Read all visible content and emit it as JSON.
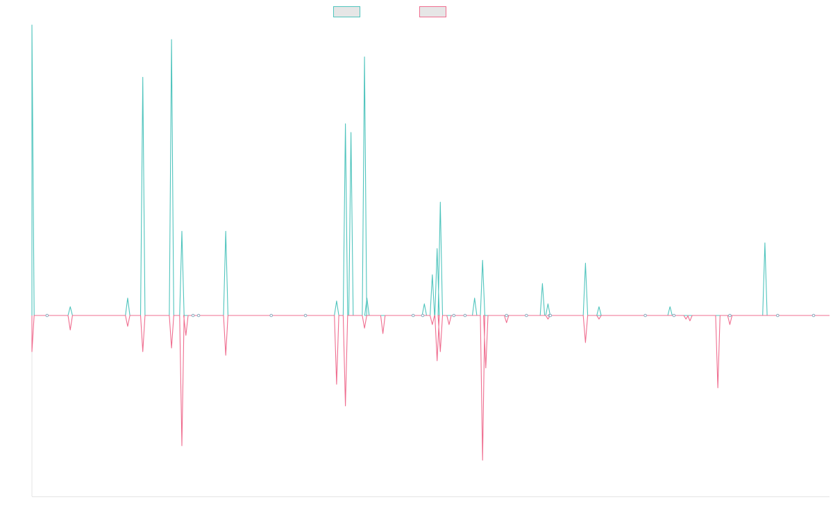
{
  "colors": {
    "series_a": "#4fc4bd",
    "series_b": "#ef6d8f",
    "axis": "#e3e3e3",
    "legend_fill": "#e6e6e6"
  },
  "legend": {
    "items": [
      {
        "label": ""
      },
      {
        "label": ""
      }
    ]
  },
  "chart_data": {
    "type": "line",
    "x_range": [
      0,
      1000
    ],
    "y_range": [
      -100,
      100
    ],
    "baseline": 0,
    "grid": false,
    "legend_position": "top-center",
    "series": [
      {
        "color": "#4fc4bd",
        "peaks": [
          [
            0,
            100
          ],
          [
            19,
            0
          ],
          [
            48,
            3
          ],
          [
            120,
            6
          ],
          [
            139,
            82
          ],
          [
            175,
            95
          ],
          [
            188,
            29
          ],
          [
            193,
            0
          ],
          [
            202,
            0
          ],
          [
            209,
            0
          ],
          [
            243,
            29
          ],
          [
            343,
            0
          ],
          [
            382,
            5
          ],
          [
            393,
            66
          ],
          [
            400,
            63
          ],
          [
            401,
            0
          ],
          [
            402,
            0
          ],
          [
            417,
            89
          ],
          [
            420,
            6
          ],
          [
            478,
            0
          ],
          [
            490,
            0
          ],
          [
            492,
            0
          ],
          [
            492,
            4
          ],
          [
            502,
            14
          ],
          [
            508,
            23
          ],
          [
            512,
            39
          ],
          [
            523,
            0
          ],
          [
            529,
            0
          ],
          [
            543,
            0
          ],
          [
            555,
            6
          ],
          [
            565,
            19
          ],
          [
            569,
            0
          ],
          [
            595,
            0
          ],
          [
            620,
            0
          ],
          [
            640,
            11
          ],
          [
            647,
            4
          ],
          [
            649,
            0
          ],
          [
            650,
            0
          ],
          [
            650,
            0
          ],
          [
            694,
            18
          ],
          [
            711,
            0
          ],
          [
            711,
            3
          ],
          [
            769,
            0
          ],
          [
            770,
            0
          ],
          [
            800,
            3
          ],
          [
            805,
            0
          ],
          [
            820,
            0
          ],
          [
            825,
            0
          ],
          [
            860,
            0
          ],
          [
            875,
            0
          ],
          [
            919,
            25
          ],
          [
            935,
            0
          ],
          [
            952,
            0
          ],
          [
            980,
            0
          ]
        ]
      },
      {
        "color": "#ef6d8f",
        "peaks": [
          [
            0,
            -20
          ],
          [
            19,
            0
          ],
          [
            48,
            -8
          ],
          [
            120,
            -6
          ],
          [
            139,
            -20
          ],
          [
            175,
            -18
          ],
          [
            188,
            -72
          ],
          [
            193,
            -11
          ],
          [
            202,
            0
          ],
          [
            209,
            0
          ],
          [
            243,
            -22
          ],
          [
            300,
            0
          ],
          [
            343,
            0
          ],
          [
            382,
            -38
          ],
          [
            393,
            -50
          ],
          [
            400,
            0
          ],
          [
            401,
            0
          ],
          [
            402,
            0
          ],
          [
            417,
            -7
          ],
          [
            440,
            -10
          ],
          [
            478,
            0
          ],
          [
            490,
            0
          ],
          [
            492,
            0
          ],
          [
            502,
            -5
          ],
          [
            508,
            -25
          ],
          [
            512,
            -20
          ],
          [
            523,
            -5
          ],
          [
            529,
            0
          ],
          [
            543,
            0
          ],
          [
            565,
            -80
          ],
          [
            569,
            -29
          ],
          [
            595,
            -4
          ],
          [
            620,
            0
          ],
          [
            640,
            0
          ],
          [
            647,
            -2
          ],
          [
            649,
            0
          ],
          [
            650,
            0
          ],
          [
            694,
            -15
          ],
          [
            711,
            -2
          ],
          [
            769,
            0
          ],
          [
            770,
            0
          ],
          [
            800,
            0
          ],
          [
            805,
            0
          ],
          [
            820,
            -2
          ],
          [
            825,
            -3
          ],
          [
            860,
            -40
          ],
          [
            875,
            -5
          ],
          [
            919,
            0
          ],
          [
            935,
            0
          ],
          [
            952,
            0
          ],
          [
            980,
            0
          ]
        ]
      }
    ]
  }
}
